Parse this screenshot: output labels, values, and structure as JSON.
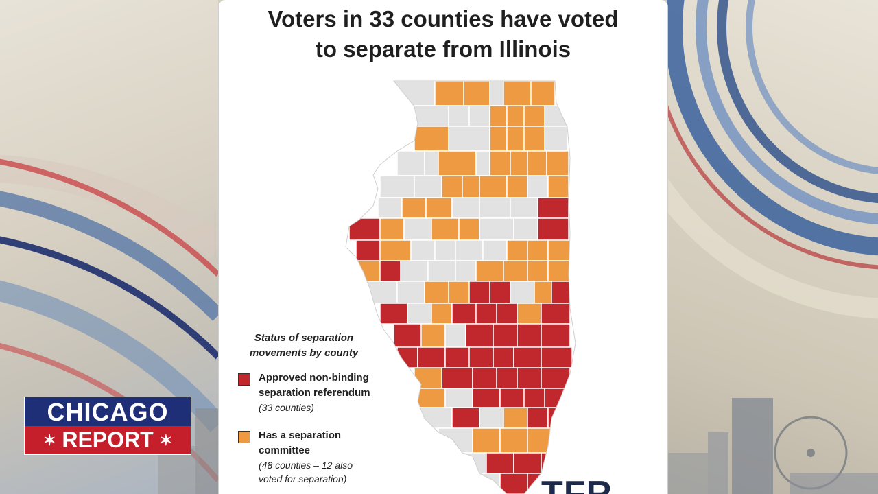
{
  "title_line1": "Voters in 33 counties have voted",
  "title_line2": "to separate from Illinois",
  "legend": {
    "title_line1": "Status of separation",
    "title_line2": "movements by county",
    "items": [
      {
        "label_line1": "Approved non-binding",
        "label_line2": "separation referendum",
        "sub": "(33 counties)",
        "color": "#c0282d"
      },
      {
        "label_line1": "Has a separation",
        "label_line2": "committee",
        "sub_line1": "(48 counties – 12 also",
        "sub_line2": "voted for separation)",
        "color": "#ee9a42"
      }
    ]
  },
  "colors": {
    "referendum": "#c0282d",
    "committee": "#ee9a42",
    "none": "#e2e2e2",
    "border": "#ffffff"
  },
  "logo": {
    "text": "TFR",
    "accent": ""
  },
  "lower_third": {
    "top": "CHICAGO",
    "bottom": "REPORT",
    "star_left": "✶",
    "star_right": "✶"
  }
}
